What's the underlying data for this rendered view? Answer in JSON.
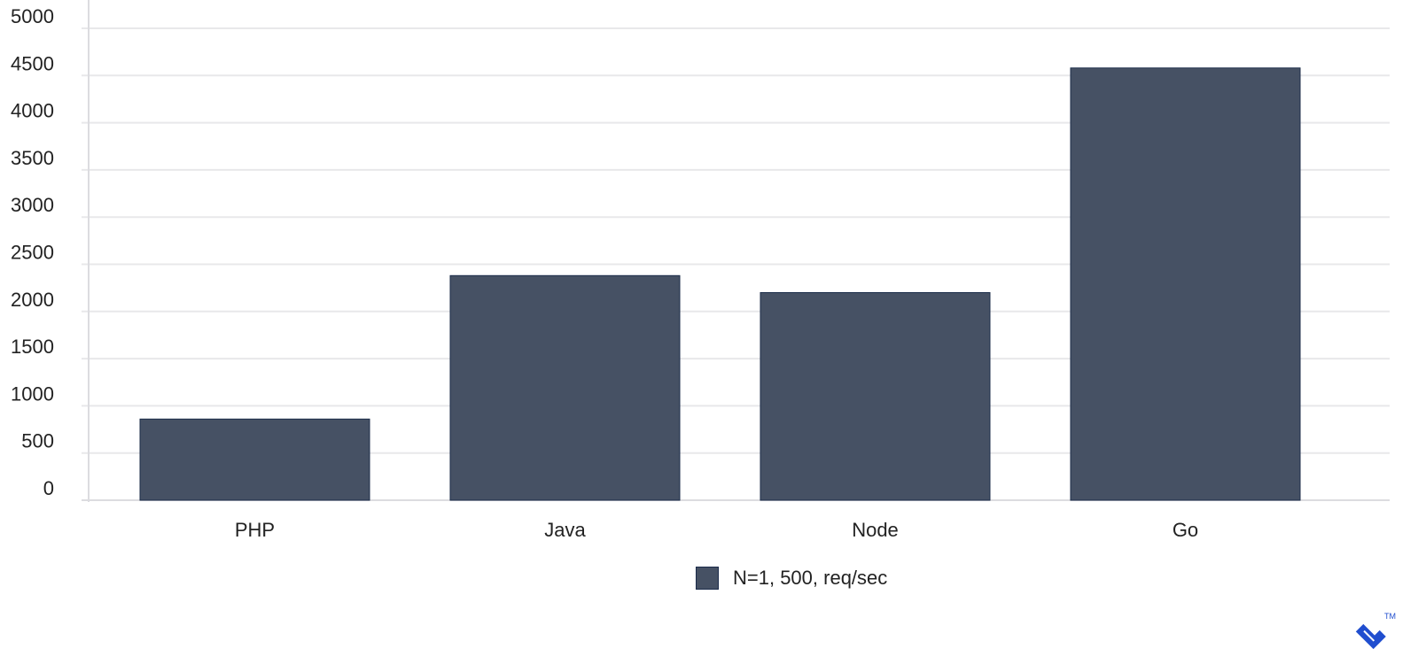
{
  "chart_data": {
    "type": "bar",
    "categories": [
      "PHP",
      "Java",
      "Node",
      "Go"
    ],
    "series": [
      {
        "name": "N=1, 500, req/sec",
        "values": [
          860,
          2380,
          2200,
          4580
        ],
        "color": "#465164"
      }
    ],
    "title": "",
    "xlabel": "",
    "ylabel": "",
    "ylim": [
      0,
      5000
    ],
    "yticks": [
      0,
      500,
      1000,
      1500,
      2000,
      2500,
      3000,
      3500,
      4000,
      4500,
      5000
    ],
    "grid": true,
    "legend_position": "bottom-center"
  },
  "logo": {
    "text": "TM",
    "color": "#204ECF"
  }
}
